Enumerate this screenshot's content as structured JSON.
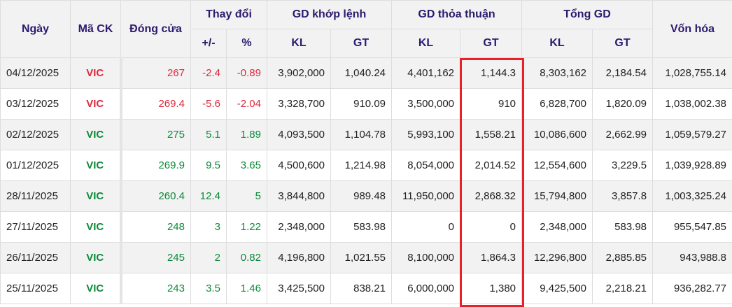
{
  "headers": {
    "date": "Ngày",
    "symbol": "Mã CK",
    "close": "Đóng cửa",
    "change": "Thay đổi",
    "change_abs": "+/-",
    "change_pct": "%",
    "matched": "GD khớp lệnh",
    "negotiated": "GD thỏa thuận",
    "total": "Tổng GD",
    "kl": "KL",
    "gt": "GT",
    "market_cap": "Vốn hóa"
  },
  "colors": {
    "up": "#0d8a3a",
    "down": "#e0283c",
    "highlight": "#e8202a"
  },
  "rows": [
    {
      "date": "04/12/2025",
      "symbol": "VIC",
      "dir": "down",
      "close": "267",
      "chg": "-2.4",
      "pct": "-0.89",
      "m_kl": "3,902,000",
      "m_gt": "1,040.24",
      "n_kl": "4,401,162",
      "n_gt": "1,144.3",
      "t_kl": "8,303,162",
      "t_gt": "2,184.54",
      "cap": "1,028,755.14"
    },
    {
      "date": "03/12/2025",
      "symbol": "VIC",
      "dir": "down",
      "close": "269.4",
      "chg": "-5.6",
      "pct": "-2.04",
      "m_kl": "3,328,700",
      "m_gt": "910.09",
      "n_kl": "3,500,000",
      "n_gt": "910",
      "t_kl": "6,828,700",
      "t_gt": "1,820.09",
      "cap": "1,038,002.38"
    },
    {
      "date": "02/12/2025",
      "symbol": "VIC",
      "dir": "up",
      "close": "275",
      "chg": "5.1",
      "pct": "1.89",
      "m_kl": "4,093,500",
      "m_gt": "1,104.78",
      "n_kl": "5,993,100",
      "n_gt": "1,558.21",
      "t_kl": "10,086,600",
      "t_gt": "2,662.99",
      "cap": "1,059,579.27"
    },
    {
      "date": "01/12/2025",
      "symbol": "VIC",
      "dir": "up",
      "close": "269.9",
      "chg": "9.5",
      "pct": "3.65",
      "m_kl": "4,500,600",
      "m_gt": "1,214.98",
      "n_kl": "8,054,000",
      "n_gt": "2,014.52",
      "t_kl": "12,554,600",
      "t_gt": "3,229.5",
      "cap": "1,039,928.89"
    },
    {
      "date": "28/11/2025",
      "symbol": "VIC",
      "dir": "up",
      "close": "260.4",
      "chg": "12.4",
      "pct": "5",
      "m_kl": "3,844,800",
      "m_gt": "989.48",
      "n_kl": "11,950,000",
      "n_gt": "2,868.32",
      "t_kl": "15,794,800",
      "t_gt": "3,857.8",
      "cap": "1,003,325.24"
    },
    {
      "date": "27/11/2025",
      "symbol": "VIC",
      "dir": "up",
      "close": "248",
      "chg": "3",
      "pct": "1.22",
      "m_kl": "2,348,000",
      "m_gt": "583.98",
      "n_kl": "0",
      "n_gt": "0",
      "t_kl": "2,348,000",
      "t_gt": "583.98",
      "cap": "955,547.85"
    },
    {
      "date": "26/11/2025",
      "symbol": "VIC",
      "dir": "up",
      "close": "245",
      "chg": "2",
      "pct": "0.82",
      "m_kl": "4,196,800",
      "m_gt": "1,021.55",
      "n_kl": "8,100,000",
      "n_gt": "1,864.3",
      "t_kl": "12,296,800",
      "t_gt": "2,885.85",
      "cap": "943,988.8"
    },
    {
      "date": "25/11/2025",
      "symbol": "VIC",
      "dir": "up",
      "close": "243",
      "chg": "3.5",
      "pct": "1.46",
      "m_kl": "3,425,500",
      "m_gt": "838.21",
      "n_kl": "6,000,000",
      "n_gt": "1,380",
      "t_kl": "9,425,500",
      "t_gt": "2,218.21",
      "cap": "936,282.77"
    }
  ]
}
